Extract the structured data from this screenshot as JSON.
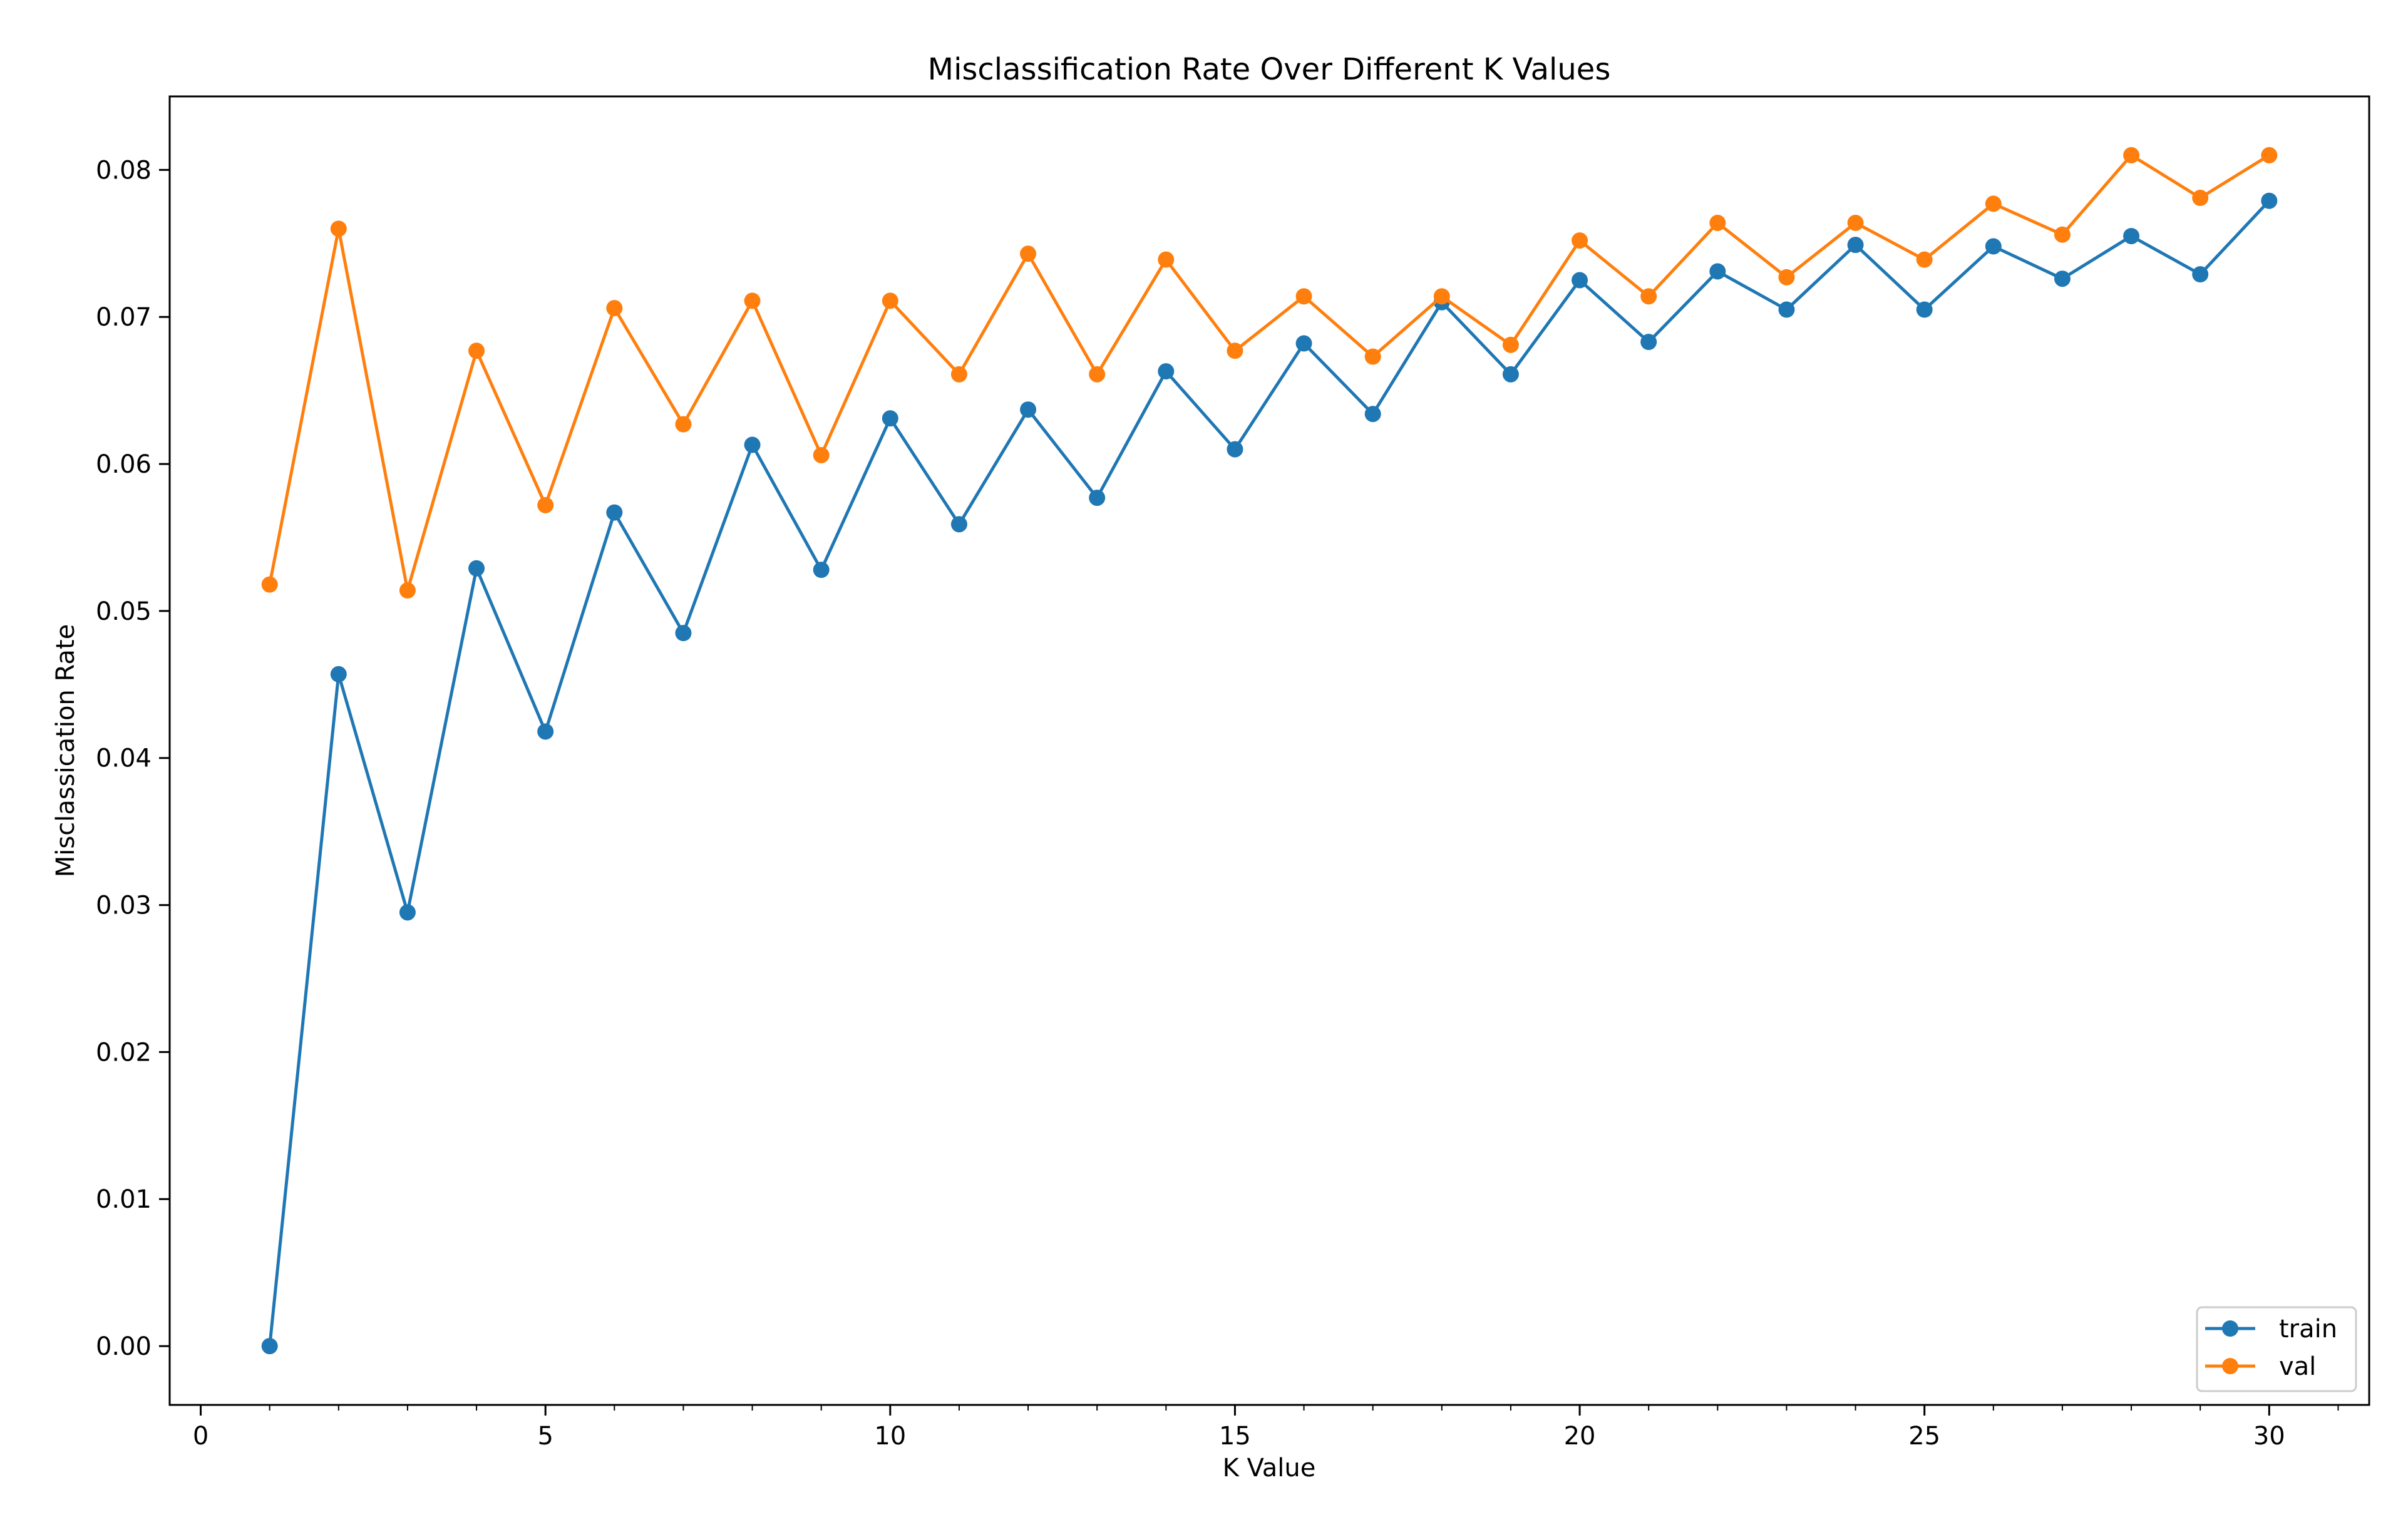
{
  "chart_data": {
    "type": "line",
    "title": "Misclassification Rate Over Different K Values",
    "xlabel": "K Value",
    "ylabel": "Misclassication Rate",
    "xlim": [
      -0.45,
      31.45
    ],
    "ylim": [
      -0.004,
      0.085
    ],
    "x_ticks": [
      0,
      5,
      10,
      15,
      20,
      25,
      30
    ],
    "x_tick_labels": [
      "0",
      "5",
      "10",
      "15",
      "20",
      "25",
      "30"
    ],
    "y_ticks": [
      0.0,
      0.01,
      0.02,
      0.03,
      0.04,
      0.05,
      0.06,
      0.07,
      0.08
    ],
    "y_tick_labels": [
      "0.00",
      "0.01",
      "0.02",
      "0.03",
      "0.04",
      "0.05",
      "0.06",
      "0.07",
      "0.08"
    ],
    "grid": false,
    "legend_position": "lower-right",
    "x": [
      1,
      2,
      3,
      4,
      5,
      6,
      7,
      8,
      9,
      10,
      11,
      12,
      13,
      14,
      15,
      16,
      17,
      18,
      19,
      20,
      21,
      22,
      23,
      24,
      25,
      26,
      27,
      28,
      29,
      30
    ],
    "series": [
      {
        "name": "train",
        "color": "#1f77b4",
        "marker": "circle",
        "values": [
          0.0,
          0.0457,
          0.0295,
          0.0529,
          0.0418,
          0.0567,
          0.0485,
          0.0613,
          0.0528,
          0.0631,
          0.0559,
          0.0637,
          0.0577,
          0.0663,
          0.061,
          0.0682,
          0.0634,
          0.071,
          0.0661,
          0.0725,
          0.0683,
          0.0731,
          0.0705,
          0.0749,
          0.0705,
          0.0748,
          0.0726,
          0.0755,
          0.0729,
          0.0779
        ]
      },
      {
        "name": "val",
        "color": "#ff7f0e",
        "marker": "circle",
        "values": [
          0.0518,
          0.076,
          0.0514,
          0.0677,
          0.0572,
          0.0706,
          0.0627,
          0.0711,
          0.0606,
          0.0711,
          0.0661,
          0.0743,
          0.0661,
          0.0739,
          0.0677,
          0.0714,
          0.0673,
          0.0714,
          0.0681,
          0.0752,
          0.0714,
          0.0764,
          0.0727,
          0.0764,
          0.0739,
          0.0777,
          0.0756,
          0.081,
          0.0781,
          0.081
        ]
      }
    ]
  }
}
